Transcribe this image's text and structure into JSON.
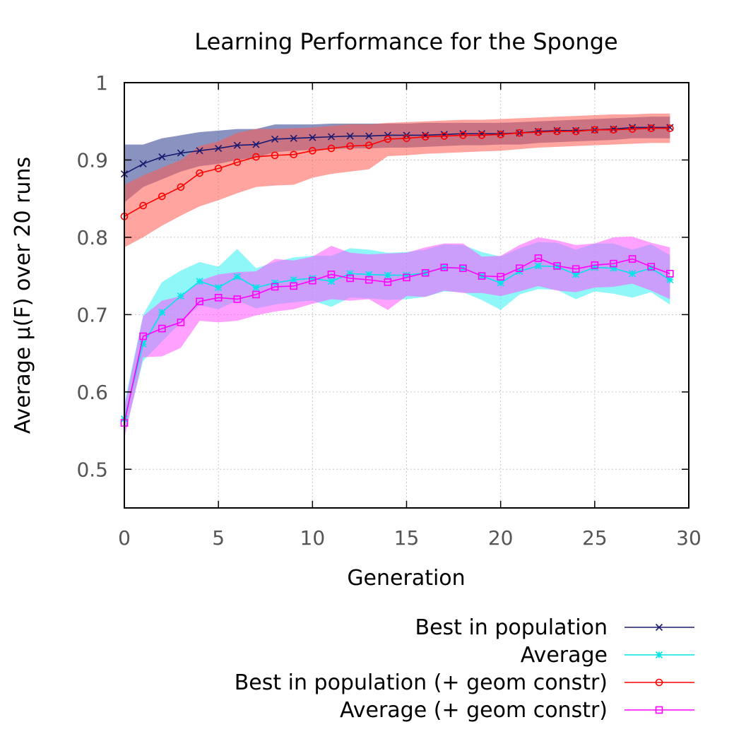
{
  "chart_data": {
    "type": "line",
    "title": "Learning Performance for the Sponge",
    "xlabel": "Generation",
    "ylabel": "Average μ(F) over 20 runs",
    "xlim": [
      0,
      30
    ],
    "ylim": [
      0.45,
      1.0
    ],
    "x_ticks": [
      "0",
      "5",
      "10",
      "15",
      "20",
      "25",
      "30"
    ],
    "y_ticks": [
      "0.5",
      "0.6",
      "0.7",
      "0.8",
      "0.9",
      "1"
    ],
    "grid": true,
    "legend_position": "bottom",
    "x": [
      0,
      1,
      2,
      3,
      4,
      5,
      6,
      7,
      8,
      9,
      10,
      11,
      12,
      13,
      14,
      15,
      16,
      17,
      18,
      19,
      20,
      21,
      22,
      23,
      24,
      25,
      26,
      27,
      28,
      29
    ],
    "series": [
      {
        "name": "Best in population",
        "color": "#191970",
        "band_color": "#2a3a8c",
        "marker": "x",
        "values": [
          0.882,
          0.895,
          0.904,
          0.909,
          0.912,
          0.915,
          0.919,
          0.92,
          0.927,
          0.928,
          0.929,
          0.93,
          0.931,
          0.931,
          0.932,
          0.932,
          0.932,
          0.933,
          0.934,
          0.934,
          0.934,
          0.935,
          0.937,
          0.938,
          0.938,
          0.939,
          0.94,
          0.942,
          0.942,
          0.942
        ],
        "lower": [
          0.845,
          0.865,
          0.875,
          0.885,
          0.892,
          0.895,
          0.9,
          0.903,
          0.91,
          0.912,
          0.913,
          0.914,
          0.915,
          0.915,
          0.916,
          0.916,
          0.917,
          0.918,
          0.919,
          0.919,
          0.92,
          0.92,
          0.922,
          0.923,
          0.924,
          0.925,
          0.926,
          0.928,
          0.928,
          0.928
        ],
        "upper": [
          0.92,
          0.92,
          0.928,
          0.932,
          0.936,
          0.938,
          0.94,
          0.94,
          0.946,
          0.946,
          0.946,
          0.947,
          0.947,
          0.947,
          0.947,
          0.947,
          0.948,
          0.948,
          0.948,
          0.948,
          0.948,
          0.949,
          0.95,
          0.951,
          0.952,
          0.953,
          0.954,
          0.955,
          0.956,
          0.956
        ]
      },
      {
        "name": "Average",
        "color": "#00e5e5",
        "band_color": "#33f0f0",
        "marker": "star",
        "values": [
          0.565,
          0.662,
          0.703,
          0.724,
          0.743,
          0.735,
          0.749,
          0.735,
          0.741,
          0.745,
          0.747,
          0.743,
          0.753,
          0.752,
          0.751,
          0.751,
          0.754,
          0.761,
          0.76,
          0.75,
          0.741,
          0.756,
          0.763,
          0.762,
          0.752,
          0.761,
          0.76,
          0.753,
          0.76,
          0.745
        ],
        "lower": [
          0.545,
          0.64,
          0.665,
          0.69,
          0.712,
          0.707,
          0.718,
          0.708,
          0.713,
          0.716,
          0.718,
          0.71,
          0.722,
          0.721,
          0.719,
          0.72,
          0.723,
          0.73,
          0.729,
          0.719,
          0.706,
          0.726,
          0.733,
          0.732,
          0.72,
          0.73,
          0.727,
          0.722,
          0.729,
          0.713
        ],
        "upper": [
          0.585,
          0.7,
          0.742,
          0.757,
          0.768,
          0.762,
          0.785,
          0.76,
          0.768,
          0.774,
          0.776,
          0.776,
          0.786,
          0.784,
          0.78,
          0.781,
          0.784,
          0.791,
          0.79,
          0.781,
          0.775,
          0.786,
          0.794,
          0.793,
          0.784,
          0.792,
          0.792,
          0.784,
          0.791,
          0.777
        ]
      },
      {
        "name": "Best in population (+ geom constr)",
        "color": "#ff0000",
        "band_color": "#ff5a50",
        "marker": "circle",
        "values": [
          0.827,
          0.841,
          0.853,
          0.865,
          0.883,
          0.889,
          0.897,
          0.904,
          0.906,
          0.907,
          0.912,
          0.915,
          0.918,
          0.919,
          0.927,
          0.928,
          0.93,
          0.931,
          0.932,
          0.932,
          0.933,
          0.935,
          0.936,
          0.937,
          0.937,
          0.939,
          0.939,
          0.94,
          0.941,
          0.941
        ],
        "lower": [
          0.787,
          0.8,
          0.815,
          0.828,
          0.84,
          0.848,
          0.857,
          0.865,
          0.867,
          0.868,
          0.877,
          0.882,
          0.885,
          0.888,
          0.905,
          0.906,
          0.908,
          0.909,
          0.91,
          0.911,
          0.912,
          0.914,
          0.916,
          0.917,
          0.918,
          0.919,
          0.92,
          0.921,
          0.922,
          0.922
        ],
        "upper": [
          0.868,
          0.88,
          0.89,
          0.9,
          0.918,
          0.924,
          0.935,
          0.94,
          0.94,
          0.941,
          0.942,
          0.944,
          0.946,
          0.946,
          0.948,
          0.949,
          0.95,
          0.951,
          0.952,
          0.952,
          0.953,
          0.954,
          0.955,
          0.956,
          0.957,
          0.958,
          0.959,
          0.959,
          0.96,
          0.96
        ]
      },
      {
        "name": "Average (+ geom constr)",
        "color": "#ff00ff",
        "band_color": "#ff55ff",
        "marker": "square",
        "values": [
          0.56,
          0.672,
          0.682,
          0.69,
          0.717,
          0.722,
          0.72,
          0.726,
          0.736,
          0.737,
          0.744,
          0.752,
          0.747,
          0.745,
          0.742,
          0.748,
          0.754,
          0.761,
          0.76,
          0.75,
          0.749,
          0.76,
          0.773,
          0.763,
          0.759,
          0.764,
          0.766,
          0.772,
          0.762,
          0.753
        ],
        "lower": [
          0.54,
          0.645,
          0.646,
          0.657,
          0.692,
          0.69,
          0.692,
          0.699,
          0.704,
          0.707,
          0.714,
          0.72,
          0.718,
          0.72,
          0.706,
          0.724,
          0.723,
          0.731,
          0.728,
          0.728,
          0.724,
          0.73,
          0.737,
          0.731,
          0.729,
          0.735,
          0.736,
          0.74,
          0.731,
          0.72
        ],
        "upper": [
          0.58,
          0.698,
          0.718,
          0.724,
          0.744,
          0.752,
          0.755,
          0.756,
          0.772,
          0.77,
          0.775,
          0.789,
          0.78,
          0.778,
          0.779,
          0.78,
          0.787,
          0.792,
          0.792,
          0.775,
          0.776,
          0.79,
          0.8,
          0.796,
          0.79,
          0.792,
          0.8,
          0.801,
          0.793,
          0.787
        ]
      }
    ]
  }
}
